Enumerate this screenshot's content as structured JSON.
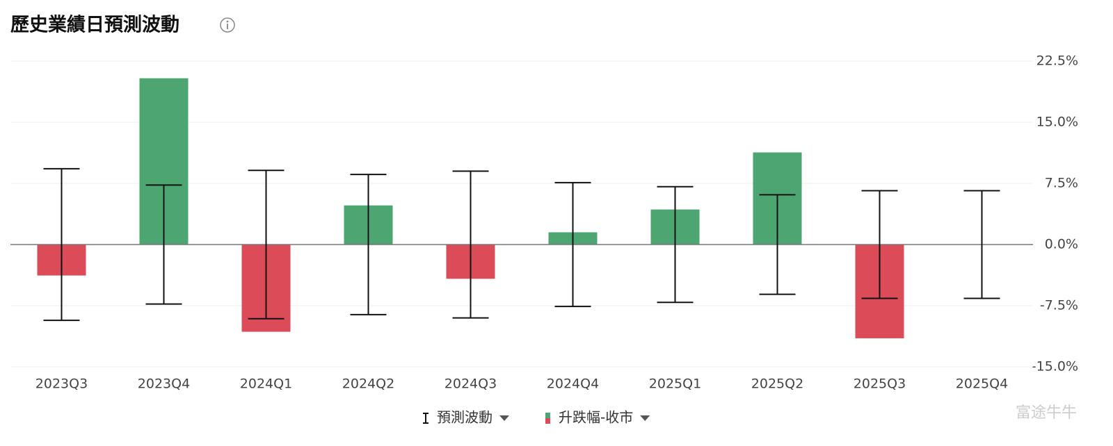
{
  "chart_data": {
    "type": "bar_errorbar",
    "title": "歷史業績日預測波動",
    "categories": [
      "2023Q3",
      "2023Q4",
      "2024Q1",
      "2024Q2",
      "2024Q3",
      "2024Q4",
      "2025Q1",
      "2025Q2",
      "2025Q3",
      "2025Q4"
    ],
    "series": [
      {
        "name": "預測波動",
        "kind": "errorbar",
        "color": "#111111",
        "values": [
          9.3,
          7.3,
          9.1,
          8.6,
          9.0,
          7.6,
          7.1,
          6.1,
          6.6,
          6.6
        ]
      },
      {
        "name": "升跌幅-收市",
        "kind": "bar",
        "color": "#4da672",
        "negative_color": "#dc4b58",
        "values": [
          -3.8,
          20.4,
          -10.7,
          4.8,
          -4.2,
          1.5,
          4.3,
          11.3,
          -11.5,
          null
        ]
      }
    ],
    "ylim": [
      -15,
      22.5
    ],
    "yticks": [
      {
        "value": 22.5,
        "label": "22.5%"
      },
      {
        "value": 15,
        "label": "15.0%"
      },
      {
        "value": 7.5,
        "label": "7.5%"
      },
      {
        "value": 0,
        "label": "0.0%"
      },
      {
        "value": -7.5,
        "label": "-7.5%"
      },
      {
        "value": -15,
        "label": "-15.0%"
      }
    ],
    "grid": true,
    "legend": "bottom",
    "watermark": "富途牛牛"
  }
}
